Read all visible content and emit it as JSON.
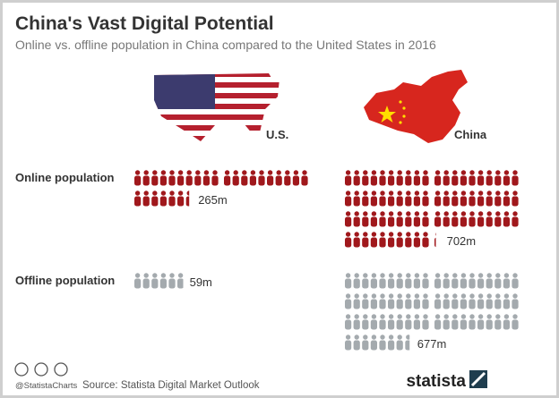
{
  "chart_data": {
    "type": "pictogram",
    "title": "China's Vast Digital Potential",
    "subtitle": "Online vs. offline population in China compared to the United States in 2016",
    "categories": [
      "Online population",
      "Offline population"
    ],
    "colors": [
      "#a0181c",
      "#a4aaae"
    ],
    "series": [
      {
        "name": "U.S.",
        "values": [
          265,
          59
        ],
        "value_labels": [
          "265m",
          "59m"
        ]
      },
      {
        "name": "China",
        "values": [
          702,
          677
        ],
        "value_labels": [
          "702m",
          "677m"
        ]
      }
    ],
    "credit": "@StatistaCharts",
    "source": "Source: Statista Digital Market Outlook",
    "brand": "statista"
  }
}
